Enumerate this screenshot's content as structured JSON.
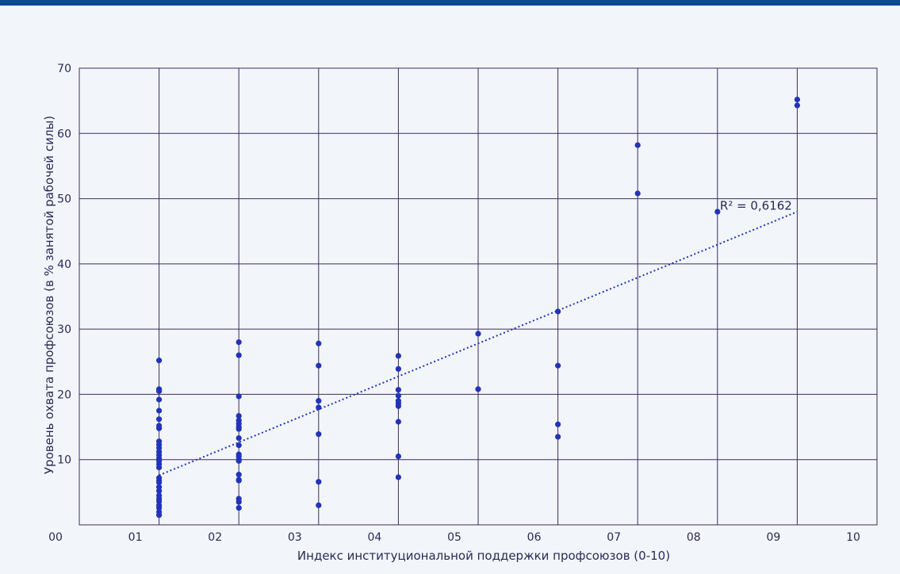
{
  "chart_data": {
    "type": "scatter",
    "title": "",
    "xlabel": "Индекс институциональной поддержки профсоюзов (0-10)",
    "ylabel": "Уровень охвата профсоюзов (в % занятой рабочей силы)",
    "xlim": [
      0,
      10
    ],
    "ylim": [
      0,
      70
    ],
    "x_tick_labels": [
      "00",
      "01",
      "02",
      "03",
      "04",
      "05",
      "06",
      "07",
      "08",
      "09",
      "10"
    ],
    "y_tick_labels": [
      "10",
      "20",
      "30",
      "40",
      "50",
      "60",
      "70"
    ],
    "grid": true,
    "trendline": {
      "type": "linear",
      "x": [
        1,
        9
      ],
      "y": [
        7.6,
        48
      ],
      "r2_label": "R² = 0,6162"
    },
    "colors": {
      "points": "#2233bb",
      "grid": "#3d2b5e",
      "trendline": "#2233bb",
      "accent": "#0d4a93"
    },
    "points": [
      [
        1,
        25.2
      ],
      [
        1,
        20.8
      ],
      [
        1,
        20.5
      ],
      [
        1,
        19.2
      ],
      [
        1,
        17.5
      ],
      [
        1,
        16.2
      ],
      [
        1,
        15.2
      ],
      [
        1,
        14.8
      ],
      [
        1,
        12.8
      ],
      [
        1,
        12.3
      ],
      [
        1,
        11.8
      ],
      [
        1,
        11.2
      ],
      [
        1,
        10.7
      ],
      [
        1,
        10.2
      ],
      [
        1,
        9.8
      ],
      [
        1,
        9.3
      ],
      [
        1,
        8.8
      ],
      [
        1,
        7.2
      ],
      [
        1,
        6.8
      ],
      [
        1,
        6.5
      ],
      [
        1,
        5.8
      ],
      [
        1,
        5.2
      ],
      [
        1,
        4.5
      ],
      [
        1,
        4.0
      ],
      [
        1,
        3.6
      ],
      [
        1,
        3.0
      ],
      [
        1,
        2.6
      ],
      [
        1,
        2.0
      ],
      [
        1,
        1.5
      ],
      [
        2,
        28.0
      ],
      [
        2,
        26.0
      ],
      [
        2,
        19.7
      ],
      [
        2,
        16.7
      ],
      [
        2,
        16.0
      ],
      [
        2,
        15.5
      ],
      [
        2,
        15.0
      ],
      [
        2,
        14.7
      ],
      [
        2,
        13.3
      ],
      [
        2,
        12.2
      ],
      [
        2,
        10.8
      ],
      [
        2,
        10.5
      ],
      [
        2,
        10.0
      ],
      [
        2,
        9.8
      ],
      [
        2,
        7.7
      ],
      [
        2,
        6.9
      ],
      [
        2,
        6.8
      ],
      [
        2,
        4.0
      ],
      [
        2,
        3.5
      ],
      [
        2,
        2.6
      ],
      [
        3,
        27.8
      ],
      [
        3,
        24.4
      ],
      [
        3,
        19.0
      ],
      [
        3,
        18.0
      ],
      [
        3,
        13.9
      ],
      [
        3,
        6.6
      ],
      [
        3,
        3.0
      ],
      [
        4,
        25.9
      ],
      [
        4,
        23.9
      ],
      [
        4,
        20.7
      ],
      [
        4,
        19.8
      ],
      [
        4,
        19.0
      ],
      [
        4,
        18.6
      ],
      [
        4,
        18.2
      ],
      [
        4,
        15.8
      ],
      [
        4,
        10.5
      ],
      [
        4,
        7.3
      ],
      [
        5,
        29.3
      ],
      [
        5,
        20.8
      ],
      [
        6,
        32.7
      ],
      [
        6,
        24.4
      ],
      [
        6,
        15.4
      ],
      [
        6,
        13.5
      ],
      [
        7,
        58.2
      ],
      [
        7,
        50.8
      ],
      [
        8,
        48.0
      ],
      [
        9,
        65.2
      ],
      [
        9,
        64.3
      ]
    ]
  }
}
